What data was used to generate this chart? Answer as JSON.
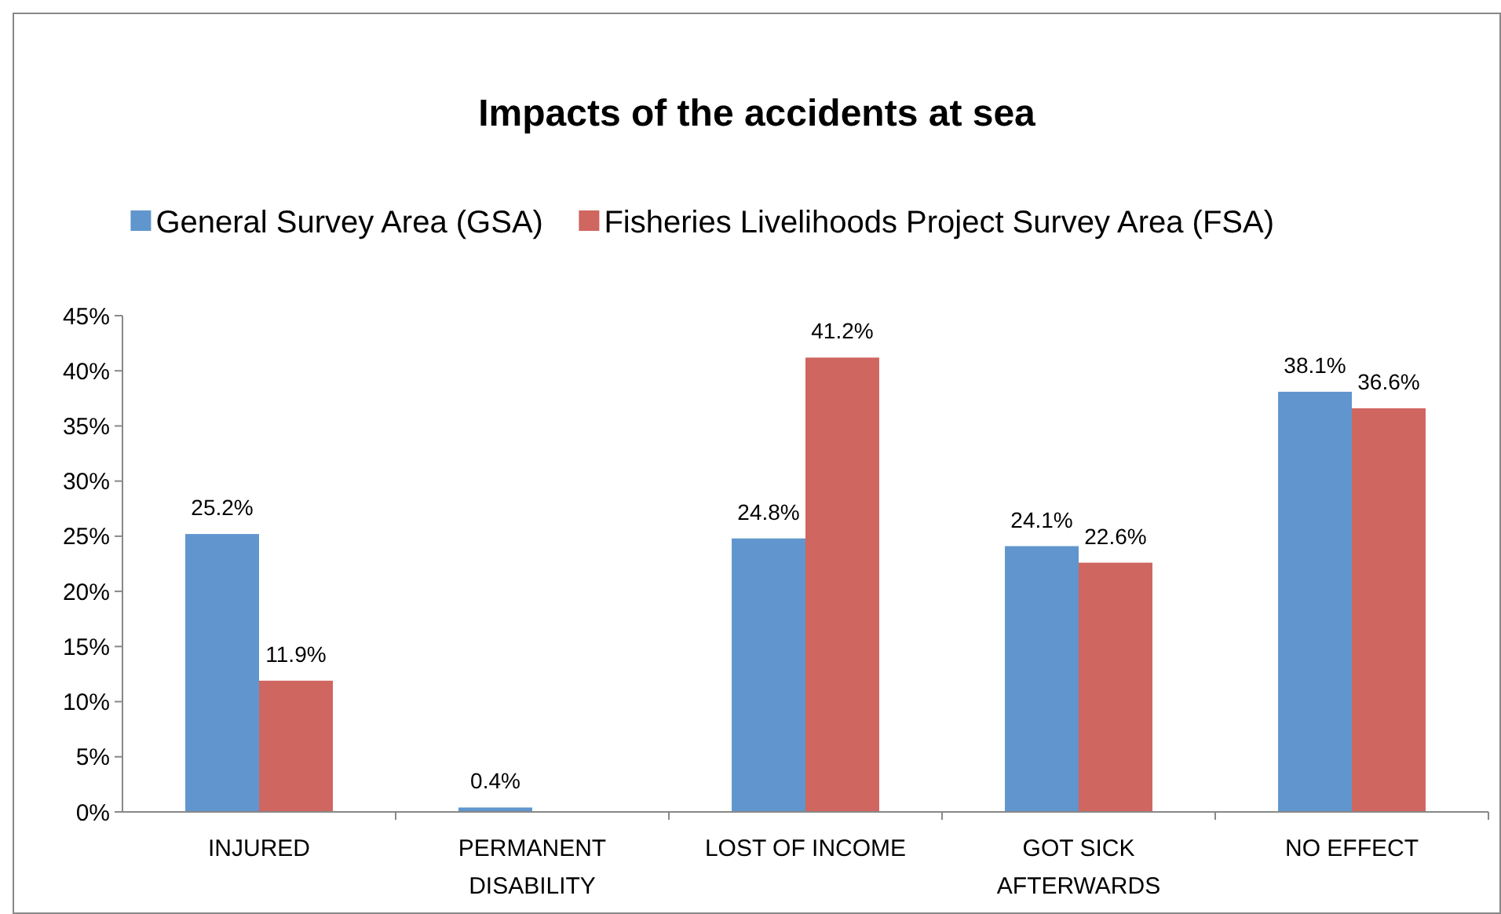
{
  "chart_data": {
    "type": "bar",
    "title": "Impacts of the accidents at sea",
    "categories": [
      "INJURED",
      "PERMANENT DISABILITY",
      "LOST OF INCOME",
      "GOT SICK AFTERWARDS",
      "NO EFFECT"
    ],
    "series": [
      {
        "name": "General Survey Area (GSA)",
        "color": "#6096cd",
        "values": [
          25.2,
          0.4,
          24.8,
          24.1,
          38.1
        ],
        "value_labels": [
          "25.2%",
          "0.4%",
          "24.8%",
          "24.1%",
          "38.1%"
        ]
      },
      {
        "name": "Fisheries Livelihoods Project Survey Area (FSA)",
        "color": "#cf6660",
        "values": [
          11.9,
          null,
          41.2,
          22.6,
          36.6
        ],
        "value_labels": [
          "11.9%",
          null,
          "41.2%",
          "22.6%",
          "36.6%"
        ]
      }
    ],
    "ylim": [
      0,
      45
    ],
    "yticks": [
      {
        "value": 0,
        "label": "0%"
      },
      {
        "value": 5,
        "label": "5%"
      },
      {
        "value": 10,
        "label": "10%"
      },
      {
        "value": 15,
        "label": "15%"
      },
      {
        "value": 20,
        "label": "20%"
      },
      {
        "value": 25,
        "label": "25%"
      },
      {
        "value": 30,
        "label": "30%"
      },
      {
        "value": 35,
        "label": "35%"
      },
      {
        "value": 40,
        "label": "40%"
      },
      {
        "value": 45,
        "label": "45%"
      }
    ],
    "legend": "top",
    "grid": false
  }
}
